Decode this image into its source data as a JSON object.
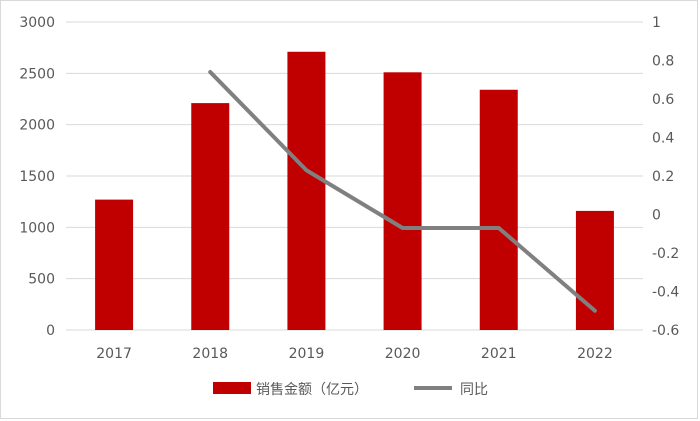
{
  "chart_data": {
    "type": "bar",
    "categories": [
      "2017",
      "2018",
      "2019",
      "2020",
      "2021",
      "2022"
    ],
    "series": [
      {
        "name": "销售金额（亿元）",
        "type": "bar",
        "axis": "left",
        "color": "#c00000",
        "values": [
          1270,
          2210,
          2710,
          2510,
          2340,
          1160
        ]
      },
      {
        "name": "同比",
        "type": "line",
        "axis": "right",
        "color": "#808080",
        "values": [
          null,
          0.74,
          0.23,
          -0.07,
          -0.07,
          -0.5
        ]
      }
    ],
    "y_left": {
      "min": 0,
      "max": 3000,
      "step": 500,
      "ticks": [
        "0",
        "500",
        "1000",
        "1500",
        "2000",
        "2500",
        "3000"
      ]
    },
    "y_right": {
      "min": -0.6,
      "max": 1.0,
      "step": 0.2,
      "ticks": [
        "-0.6",
        "-0.4",
        "-0.2",
        "0",
        "0.2",
        "0.4",
        "0.6",
        "0.8",
        "1"
      ]
    },
    "grid": true,
    "legend_position": "bottom"
  }
}
